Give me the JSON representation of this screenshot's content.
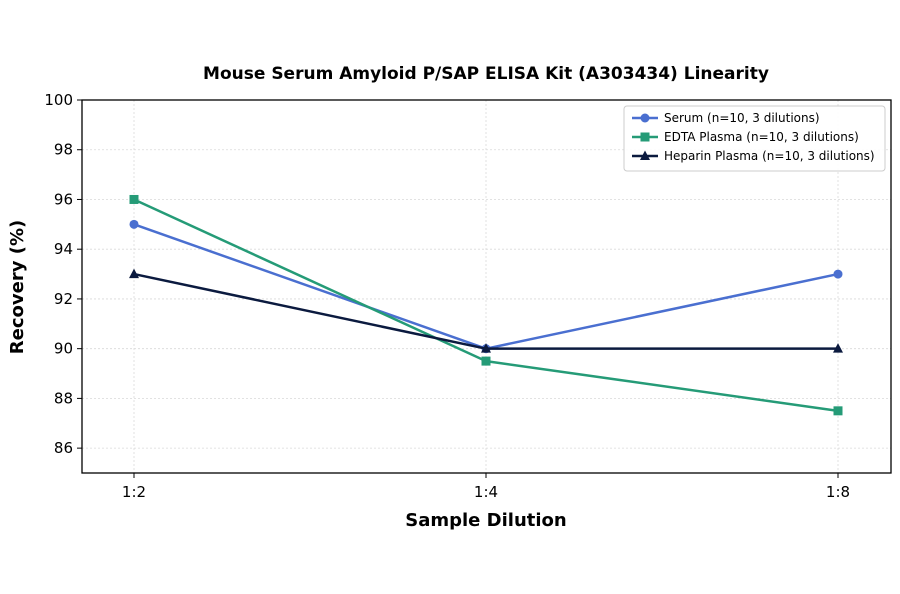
{
  "chart_data": {
    "type": "line",
    "title": "Mouse Serum Amyloid P/SAP ELISA Kit (A303434) Linearity",
    "xlabel": "Sample Dilution",
    "ylabel": "Recovery (%)",
    "categories": [
      "1:2",
      "1:4",
      "1:8"
    ],
    "ylim": [
      85,
      100
    ],
    "yticks": [
      86,
      88,
      90,
      92,
      94,
      96,
      98,
      100
    ],
    "grid": true,
    "legend_position": "top-right",
    "series": [
      {
        "name": "Serum (n=10, 3 dilutions)",
        "values": [
          95,
          90,
          93
        ],
        "color": "#4a6fd0",
        "marker": "circle"
      },
      {
        "name": "EDTA Plasma (n=10, 3 dilutions)",
        "values": [
          96,
          89.5,
          87.5
        ],
        "color": "#259b77",
        "marker": "square"
      },
      {
        "name": "Heparin Plasma (n=10, 3 dilutions)",
        "values": [
          93,
          90,
          90
        ],
        "color": "#0b1a3f",
        "marker": "triangle"
      }
    ]
  }
}
